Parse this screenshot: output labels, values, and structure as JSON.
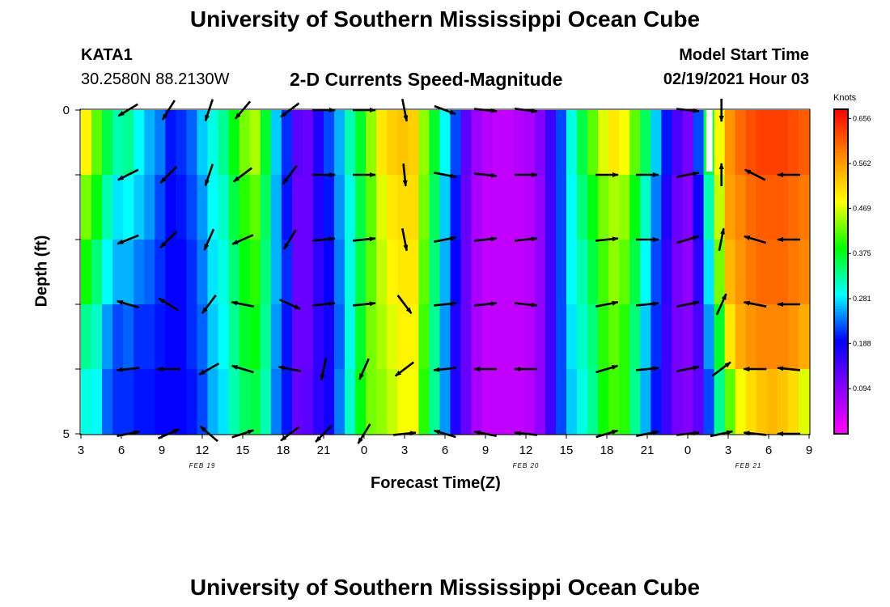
{
  "header": {
    "title": "University of Southern Mississippi Ocean Cube",
    "station": "KATA1",
    "coords": "30.2580N 88.2130W",
    "chart_title": "2-D Currents Speed-Magnitude",
    "model_label": "Model Start Time",
    "model_time": "02/19/2021 Hour 03"
  },
  "footer": {
    "title": "University of Southern Mississippi Ocean Cube"
  },
  "colors": {
    "background": "#ffffff",
    "arrow": "#000000",
    "white_gap": "#ffffff"
  },
  "chart_data": {
    "type": "heatmap",
    "title": "2-D Currents Speed-Magnitude",
    "xlabel": "Forecast Time(Z)",
    "ylabel": "Depth (ft)",
    "x_range_hours": [
      0,
      54
    ],
    "y_range": [
      0,
      5
    ],
    "y_ticks": [
      "0",
      "5"
    ],
    "y_inverted": true,
    "x_tick_labels": [
      "3",
      "6",
      "9",
      "12",
      "15",
      "18",
      "21",
      "0",
      "3",
      "6",
      "9",
      "12",
      "15",
      "18",
      "21",
      "0",
      "3",
      "6",
      "9"
    ],
    "date_labels": [
      {
        "label": "FEB 19",
        "hour": 9
      },
      {
        "label": "FEB 20",
        "hour": 33
      },
      {
        "label": "FEB 21",
        "hour": 49.5
      }
    ],
    "colorbar": {
      "label": "Knots",
      "ticks": [
        "0.656",
        "0.562",
        "0.469",
        "0.375",
        "0.281",
        "0.188",
        "0.094"
      ],
      "tick_values": [
        0.656,
        0.562,
        0.469,
        0.375,
        0.281,
        0.188,
        0.094
      ],
      "min": 0.0,
      "max": 0.675,
      "scale": [
        "#ff00ff",
        "#8800ff",
        "#0000ff",
        "#00ffff",
        "#00ff00",
        "#ffff00",
        "#ff8800",
        "#ff0000"
      ]
    },
    "depth_levels": 5,
    "speed_columns": [
      [
        0.49,
        0.43,
        0.39,
        0.33,
        0.3
      ],
      [
        0.42,
        0.38,
        0.34,
        0.31,
        0.29
      ],
      [
        0.36,
        0.32,
        0.29,
        0.25,
        0.23
      ],
      [
        0.32,
        0.28,
        0.26,
        0.22,
        0.21
      ],
      [
        0.33,
        0.29,
        0.26,
        0.23,
        0.21
      ],
      [
        0.29,
        0.27,
        0.24,
        0.21,
        0.2
      ],
      [
        0.26,
        0.25,
        0.23,
        0.21,
        0.2
      ],
      [
        0.24,
        0.22,
        0.21,
        0.2,
        0.19
      ],
      [
        0.2,
        0.19,
        0.19,
        0.19,
        0.19
      ],
      [
        0.21,
        0.2,
        0.19,
        0.19,
        0.19
      ],
      [
        0.23,
        0.22,
        0.21,
        0.21,
        0.2
      ],
      [
        0.27,
        0.25,
        0.24,
        0.23,
        0.22
      ],
      [
        0.3,
        0.29,
        0.28,
        0.27,
        0.26
      ],
      [
        0.33,
        0.31,
        0.3,
        0.29,
        0.28
      ],
      [
        0.38,
        0.36,
        0.34,
        0.33,
        0.32
      ],
      [
        0.43,
        0.4,
        0.38,
        0.37,
        0.35
      ],
      [
        0.45,
        0.42,
        0.4,
        0.38,
        0.36
      ],
      [
        0.37,
        0.35,
        0.34,
        0.33,
        0.32
      ],
      [
        0.27,
        0.26,
        0.26,
        0.25,
        0.24
      ],
      [
        0.21,
        0.2,
        0.21,
        0.2,
        0.2
      ],
      [
        0.13,
        0.12,
        0.12,
        0.12,
        0.12
      ],
      [
        0.12,
        0.12,
        0.12,
        0.12,
        0.13
      ],
      [
        0.17,
        0.17,
        0.16,
        0.16,
        0.16
      ],
      [
        0.22,
        0.2,
        0.19,
        0.18,
        0.18
      ],
      [
        0.26,
        0.25,
        0.24,
        0.23,
        0.24
      ],
      [
        0.32,
        0.3,
        0.3,
        0.3,
        0.31
      ],
      [
        0.37,
        0.36,
        0.36,
        0.37,
        0.38
      ],
      [
        0.44,
        0.42,
        0.42,
        0.43,
        0.43
      ],
      [
        0.5,
        0.47,
        0.46,
        0.45,
        0.44
      ],
      [
        0.52,
        0.5,
        0.49,
        0.47,
        0.46
      ],
      [
        0.53,
        0.51,
        0.5,
        0.49,
        0.48
      ],
      [
        0.52,
        0.51,
        0.5,
        0.49,
        0.48
      ],
      [
        0.44,
        0.43,
        0.42,
        0.41,
        0.4
      ],
      [
        0.37,
        0.35,
        0.34,
        0.33,
        0.33
      ],
      [
        0.29,
        0.27,
        0.26,
        0.25,
        0.25
      ],
      [
        0.22,
        0.2,
        0.19,
        0.17,
        0.17
      ],
      [
        0.13,
        0.12,
        0.12,
        0.12,
        0.12
      ],
      [
        0.08,
        0.07,
        0.07,
        0.07,
        0.07
      ],
      [
        0.06,
        0.05,
        0.05,
        0.05,
        0.05
      ],
      [
        0.05,
        0.05,
        0.05,
        0.05,
        0.05
      ],
      [
        0.05,
        0.05,
        0.05,
        0.05,
        0.05
      ],
      [
        0.06,
        0.05,
        0.05,
        0.05,
        0.05
      ],
      [
        0.07,
        0.06,
        0.06,
        0.06,
        0.06
      ],
      [
        0.1,
        0.09,
        0.09,
        0.09,
        0.09
      ],
      [
        0.15,
        0.15,
        0.15,
        0.15,
        0.15
      ],
      [
        0.22,
        0.22,
        0.22,
        0.22,
        0.22
      ],
      [
        0.3,
        0.29,
        0.29,
        0.28,
        0.27
      ],
      [
        0.36,
        0.34,
        0.32,
        0.31,
        0.3
      ],
      [
        0.42,
        0.38,
        0.36,
        0.34,
        0.33
      ],
      [
        0.47,
        0.43,
        0.41,
        0.4,
        0.39
      ],
      [
        0.5,
        0.45,
        0.44,
        0.42,
        0.41
      ],
      [
        0.48,
        0.44,
        0.42,
        0.4,
        0.4
      ],
      [
        0.42,
        0.38,
        0.36,
        0.34,
        0.33
      ],
      [
        0.35,
        0.31,
        0.29,
        0.27,
        0.26
      ],
      [
        0.27,
        0.24,
        0.22,
        0.21,
        0.2
      ],
      [
        0.2,
        0.17,
        0.16,
        0.15,
        0.15
      ],
      [
        0.14,
        0.12,
        0.11,
        0.11,
        0.11
      ],
      [
        0.11,
        0.1,
        0.09,
        0.1,
        0.1
      ],
      [
        0.22,
        0.18,
        0.16,
        0.14,
        0.13
      ],
      [
        0.36,
        0.32,
        0.28,
        0.25,
        0.22
      ],
      [
        0.48,
        0.46,
        0.43,
        0.37,
        0.33
      ],
      [
        0.57,
        0.56,
        0.54,
        0.5,
        0.42
      ],
      [
        0.6,
        0.58,
        0.57,
        0.55,
        0.48
      ],
      [
        0.62,
        0.6,
        0.59,
        0.57,
        0.51
      ],
      [
        0.63,
        0.61,
        0.6,
        0.58,
        0.53
      ],
      [
        0.63,
        0.61,
        0.6,
        0.58,
        0.54
      ],
      [
        0.63,
        0.61,
        0.6,
        0.58,
        0.53
      ],
      [
        0.62,
        0.6,
        0.59,
        0.57,
        0.51
      ],
      [
        0.61,
        0.59,
        0.58,
        0.55,
        0.47
      ]
    ],
    "gap_column": 59,
    "arrows": {
      "times": [
        3.5,
        6.5,
        9.5,
        12,
        15.5,
        18,
        21,
        24,
        27,
        30,
        33,
        36,
        39,
        42,
        45,
        47.5,
        50,
        52.5
      ],
      "depths": [
        0,
        1,
        2,
        3,
        4,
        5
      ],
      "dx": [
        [
          -1.0,
          -0.5,
          -0.3,
          -0.6,
          -0.8,
          1.0,
          1.0,
          0.2,
          0.8,
          1.0,
          0.8,
          0,
          0,
          0,
          1.0,
          0.0,
          0,
          0
        ],
        [
          -1.0,
          -0.7,
          -0.3,
          -0.8,
          -0.6,
          1.0,
          1.0,
          0.1,
          1.0,
          1.0,
          1.0,
          0,
          1.0,
          1.0,
          1.0,
          0.0,
          -0.8,
          -1.0
        ],
        [
          -1.0,
          -0.7,
          -0.4,
          -0.9,
          -0.5,
          1.0,
          1.0,
          0.2,
          1.0,
          1.0,
          1.0,
          0,
          1.0,
          1.0,
          1.0,
          0.2,
          -1.0,
          -1.0
        ],
        [
          -1.0,
          -1.0,
          -0.6,
          -1.0,
          0.9,
          1.0,
          1.0,
          0.6,
          1.0,
          1.0,
          1.0,
          0,
          1.0,
          1.0,
          1.0,
          0.4,
          -1.0,
          -1.0
        ],
        [
          -1.0,
          -0.8,
          -0.7,
          -1.0,
          -1.0,
          -0.2,
          -0.4,
          -0.8,
          -1.0,
          -1.0,
          -1.0,
          0,
          1.0,
          1.0,
          1.0,
          0.8,
          -1.0,
          -1.0
        ],
        [
          1.0,
          0.9,
          -0.7,
          0.9,
          -0.8,
          -0.7,
          -0.5,
          1.0,
          -1.0,
          -1.0,
          -1.0,
          0,
          1.0,
          1.0,
          1.0,
          0.9,
          -1.0,
          -1.0
        ]
      ],
      "dy": [
        [
          0.6,
          0.8,
          0.9,
          0.7,
          0.6,
          0.0,
          0.0,
          1.0,
          0.3,
          0.1,
          0.1,
          0,
          0,
          0,
          0.1,
          1.0,
          0,
          0
        ],
        [
          0.5,
          0.7,
          0.9,
          0.6,
          0.8,
          0.0,
          0.0,
          1.0,
          0.2,
          0.1,
          0.0,
          0,
          0.0,
          0.0,
          -0.2,
          -1.0,
          -0.4,
          0.0
        ],
        [
          0.4,
          0.7,
          0.9,
          0.4,
          0.8,
          -0.1,
          -0.1,
          1.0,
          -0.2,
          -0.1,
          -0.1,
          0,
          -0.1,
          0.0,
          -0.3,
          -1.0,
          -0.3,
          0.0
        ],
        [
          -0.3,
          -0.6,
          0.8,
          -0.2,
          0.4,
          -0.1,
          -0.1,
          0.8,
          -0.1,
          -0.1,
          0.1,
          0,
          -0.2,
          -0.1,
          -0.2,
          -0.9,
          -0.2,
          0.0
        ],
        [
          0.1,
          0.0,
          0.4,
          -0.3,
          -0.2,
          0.9,
          0.9,
          0.6,
          0.1,
          0.0,
          0.0,
          0,
          -0.3,
          -0.1,
          -0.2,
          -0.6,
          0.0,
          -0.1
        ],
        [
          -0.2,
          -0.4,
          -0.6,
          -0.3,
          0.6,
          0.7,
          0.8,
          -0.1,
          -0.3,
          -0.2,
          -0.1,
          0,
          -0.3,
          -0.2,
          -0.1,
          -0.2,
          -0.1,
          0.0
        ]
      ]
    },
    "annotations": [
      "Knots"
    ]
  }
}
